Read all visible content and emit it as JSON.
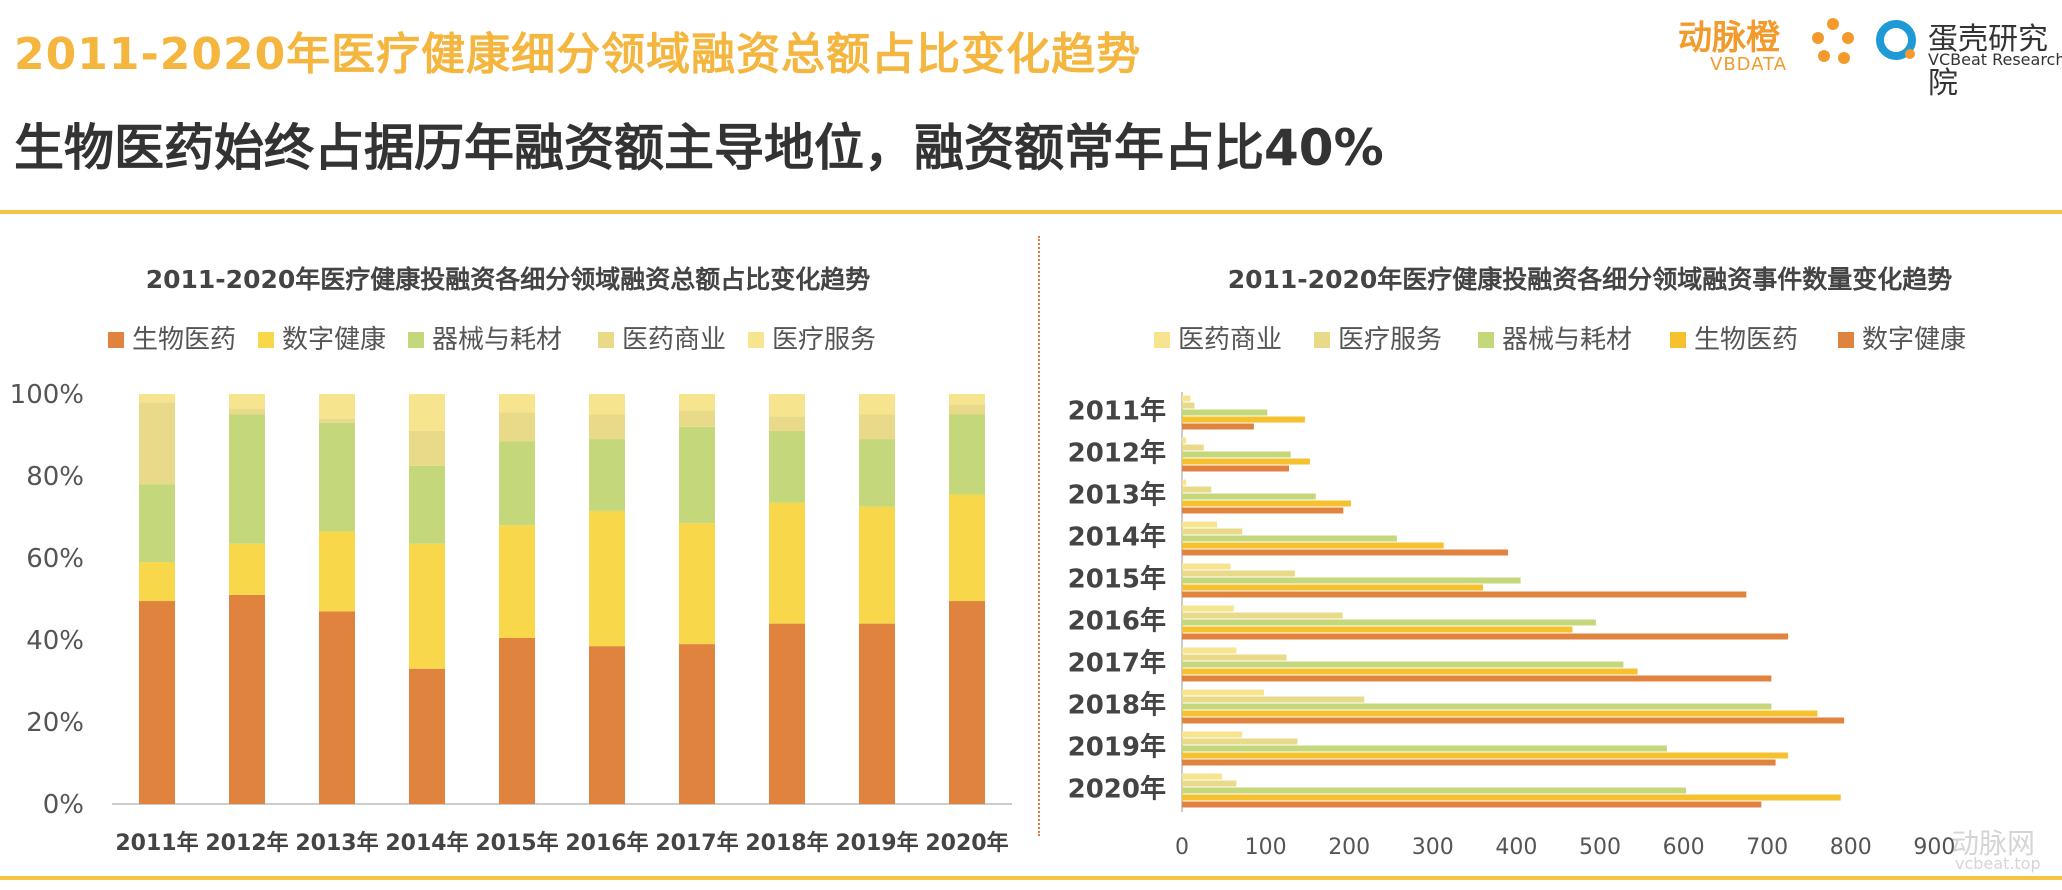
{
  "header": {
    "title": "2011-2020年医疗健康细分领域融资总额占比变化趋势",
    "subtitle": "生物医药始终占据历年融资额主导地位，融资额常年占比40%"
  },
  "logos": {
    "vbdata_cn": "动脉橙",
    "vbdata_en": "VBDATA",
    "vcbeat_cn": "蛋壳研究院",
    "vcbeat_en": "VCBeat Research",
    "watermark_cn": "动脉网",
    "watermark_en": "vcbeat.top"
  },
  "colors": {
    "bio": "#E0833E",
    "digital": "#F8D84A",
    "device": "#C4D77A",
    "commerce": "#E9DA8A",
    "service": "#F6E48E",
    "rule": "#F6C343",
    "title": "#F4B63F"
  },
  "chart_data": [
    {
      "type": "bar",
      "stacked": true,
      "percent": true,
      "title": "2011-2020年医疗健康投融资各细分领域融资总额占比变化趋势",
      "categories": [
        "2011年",
        "2012年",
        "2013年",
        "2014年",
        "2015年",
        "2016年",
        "2017年",
        "2018年",
        "2019年",
        "2020年"
      ],
      "series": [
        {
          "name": "生物医药",
          "color": "#E0833E",
          "values": [
            49.5,
            51,
            47,
            33,
            40.5,
            38.5,
            39,
            44,
            44,
            49.5
          ]
        },
        {
          "name": "数字健康",
          "color": "#F8D84A",
          "values": [
            9.5,
            12.5,
            19.5,
            30.5,
            27.5,
            33,
            29.5,
            29.5,
            28.5,
            26
          ]
        },
        {
          "name": "器械与耗材",
          "color": "#C4D77A",
          "values": [
            19,
            31.5,
            26.5,
            19,
            20.5,
            17.5,
            23.5,
            17.5,
            16.5,
            19.5
          ]
        },
        {
          "name": "医药商业",
          "color": "#E9DA8A",
          "values": [
            20,
            1.5,
            1,
            8.5,
            7,
            6,
            4,
            3.5,
            6,
            2.5
          ]
        },
        {
          "name": "医疗服务",
          "color": "#F6E48E",
          "values": [
            2,
            3.5,
            6,
            9,
            4.5,
            5,
            4,
            5.5,
            5,
            2.5
          ]
        }
      ],
      "yticks": [
        "0%",
        "20%",
        "40%",
        "60%",
        "80%",
        "100%"
      ],
      "ylim": [
        0,
        100
      ],
      "legend_position": "top"
    },
    {
      "type": "bar",
      "orientation": "horizontal",
      "title": "2011-2020年医疗健康投融资各细分领域融资事件数量变化趋势",
      "categories": [
        "2011年",
        "2012年",
        "2013年",
        "2014年",
        "2015年",
        "2016年",
        "2017年",
        "2018年",
        "2019年",
        "2020年"
      ],
      "series": [
        {
          "name": "医药商业",
          "color": "#F6E48E",
          "values": [
            10,
            5,
            5,
            42,
            58,
            62,
            65,
            98,
            72,
            48
          ]
        },
        {
          "name": "医疗服务",
          "color": "#E9DA8A",
          "values": [
            15,
            26,
            35,
            72,
            135,
            192,
            125,
            218,
            138,
            65
          ]
        },
        {
          "name": "器械与耗材",
          "color": "#C4D77A",
          "values": [
            102,
            130,
            160,
            257,
            405,
            495,
            528,
            705,
            580,
            603
          ]
        },
        {
          "name": "生物医药",
          "color": "#F5C12E",
          "values": [
            147,
            153,
            202,
            313,
            360,
            467,
            545,
            760,
            725,
            788
          ]
        },
        {
          "name": "数字健康",
          "color": "#E0833E",
          "values": [
            86,
            128,
            193,
            390,
            675,
            725,
            705,
            792,
            710,
            693
          ]
        }
      ],
      "xticks": [
        "0",
        "100",
        "200",
        "300",
        "400",
        "500",
        "600",
        "700",
        "800",
        "900"
      ],
      "xlim": [
        0,
        900
      ],
      "legend_position": "top"
    }
  ]
}
